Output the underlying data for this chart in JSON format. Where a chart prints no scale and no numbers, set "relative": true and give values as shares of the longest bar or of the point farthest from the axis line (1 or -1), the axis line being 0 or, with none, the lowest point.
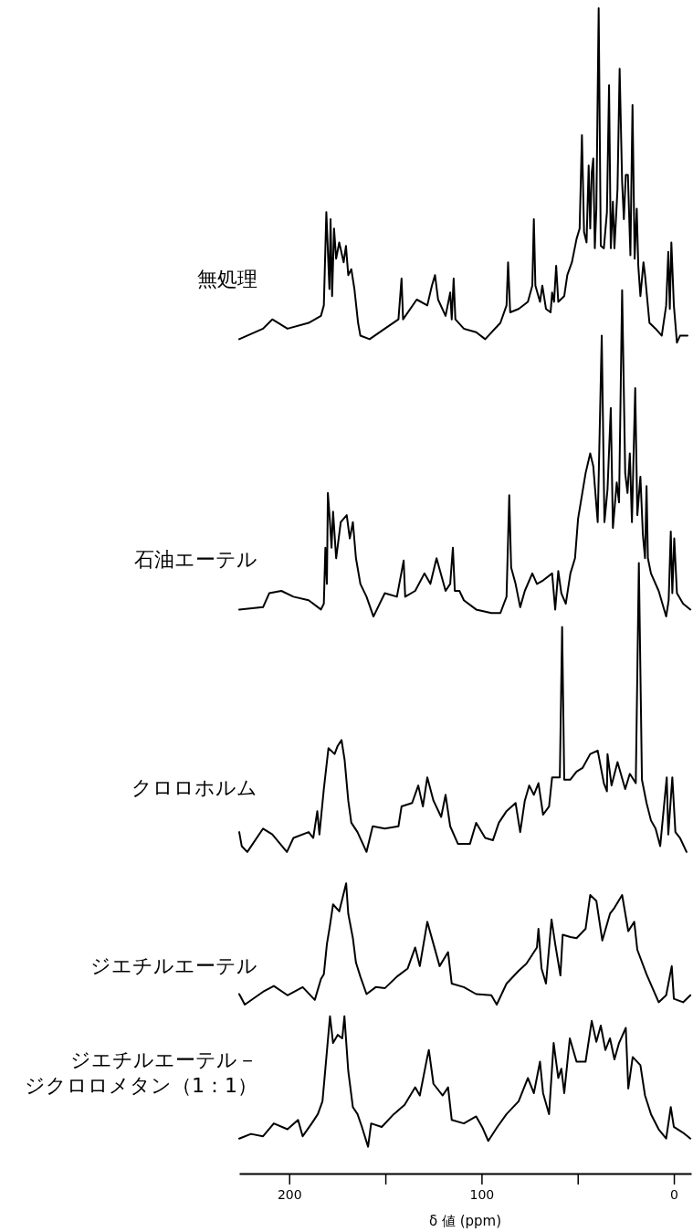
{
  "chart_data": {
    "type": "line",
    "relative": true,
    "xlim": [
      226,
      -9
    ],
    "xticks": [
      200,
      {
        "value": 150,
        "label": null
      },
      100,
      {
        "value": 50,
        "label": null
      },
      0
    ],
    "xlabel": "δ 値 (ppm)",
    "series": [
      {
        "name": "無処理",
        "color": "#000000",
        "x": [
          226.0,
          213.6,
          208.8,
          200.9,
          189.9,
          183.5,
          182.0,
          180.7,
          179.1,
          178.5,
          177.7,
          176.7,
          175.6,
          174.0,
          171.7,
          170.5,
          169.3,
          167.7,
          166.1,
          164.2,
          163.0,
          158.2,
          150.3,
          143.2,
          141.6,
          140.8,
          133.7,
          128.2,
          125.8,
          124.2,
          122.6,
          118.7,
          116.3,
          115.5,
          114.5,
          113.6,
          109.2,
          102.8,
          98.1,
          90.2,
          87.0,
          86.2,
          85.1,
          80.7,
          75.9,
          73.6,
          72.8,
          72.0,
          69.6,
          68.4,
          66.5,
          64.1,
          63.3,
          62.3,
          61.2,
          60.1,
          57.0,
          55.4,
          53.0,
          50.6,
          49.0,
          47.8,
          46.7,
          45.4,
          44.3,
          43.5,
          42.7,
          41.9,
          41.1,
          40.3,
          39.1,
          38.0,
          36.4,
          34.8,
          33.7,
          32.8,
          31.7,
          30.9,
          29.3,
          28.2,
          26.9,
          26.0,
          25.0,
          23.9,
          22.6,
          21.5,
          20.4,
          19.3,
          18.5,
          17.4,
          15.8,
          15.0,
          12.7,
          9.5,
          6.3,
          4.0,
          2.9,
          2.1,
          1.3,
          0.0,
          -1.6,
          -3.2,
          -7.1
        ],
        "values": [
          0.716,
          0.725,
          0.733,
          0.725,
          0.73,
          0.736,
          0.745,
          0.825,
          0.759,
          0.819,
          0.753,
          0.811,
          0.785,
          0.799,
          0.782,
          0.796,
          0.771,
          0.776,
          0.759,
          0.73,
          0.719,
          0.716,
          0.725,
          0.733,
          0.768,
          0.733,
          0.75,
          0.745,
          0.762,
          0.771,
          0.75,
          0.736,
          0.756,
          0.733,
          0.768,
          0.733,
          0.725,
          0.722,
          0.716,
          0.73,
          0.745,
          0.782,
          0.739,
          0.742,
          0.748,
          0.762,
          0.819,
          0.762,
          0.748,
          0.762,
          0.742,
          0.739,
          0.756,
          0.748,
          0.779,
          0.748,
          0.753,
          0.771,
          0.782,
          0.802,
          0.811,
          0.891,
          0.808,
          0.799,
          0.865,
          0.811,
          0.859,
          0.871,
          0.794,
          0.828,
          1,
          0.796,
          0.794,
          0.825,
          0.934,
          0.794,
          0.834,
          0.794,
          0.845,
          0.948,
          0.851,
          0.819,
          0.857,
          0.857,
          0.788,
          0.917,
          0.785,
          0.828,
          0.779,
          0.753,
          0.782,
          0.771,
          0.73,
          0.725,
          0.719,
          0.745,
          0.791,
          0.742,
          0.799,
          0.745,
          0.713,
          0.719,
          0.719
        ]
      },
      {
        "name": "石油エーテル",
        "color": "#000000",
        "x": [
          226.0,
          213.6,
          210.4,
          204.1,
          197.8,
          189.9,
          183.5,
          182.0,
          181.2,
          180.4,
          179.9,
          178.8,
          178.0,
          177.2,
          175.6,
          173.2,
          170.1,
          168.5,
          166.9,
          165.3,
          163.0,
          159.8,
          156.2,
          150.3,
          144.0,
          140.5,
          139.7,
          134.5,
          129.7,
          126.6,
          123.4,
          120.2,
          118.7,
          116.3,
          114.9,
          113.9,
          111.5,
          109.2,
          102.8,
          94.9,
          90.2,
          87.0,
          85.6,
          84.6,
          82.3,
          79.9,
          77.5,
          73.6,
          71.2,
          68.0,
          63.3,
          61.7,
          60.1,
          58.5,
          56.2,
          53.8,
          51.4,
          49.8,
          45.9,
          43.5,
          41.9,
          39.6,
          37.5,
          36.1,
          34.5,
          32.8,
          31.7,
          29.7,
          28.5,
          26.9,
          25.3,
          24.1,
          22.9,
          21.8,
          20.1,
          19.0,
          17.4,
          16.1,
          15.0,
          14.2,
          13.5,
          11.9,
          7.9,
          4.0,
          2.7,
          1.6,
          0.8,
          -0.2,
          -1.6,
          -4.8,
          -8.6
        ],
        "values": [
          0.484,
          0.486,
          0.498,
          0.5,
          0.495,
          0.492,
          0.484,
          0.489,
          0.537,
          0.506,
          0.584,
          0.559,
          0.537,
          0.568,
          0.528,
          0.559,
          0.565,
          0.545,
          0.559,
          0.528,
          0.506,
          0.495,
          0.478,
          0.498,
          0.495,
          0.526,
          0.495,
          0.5,
          0.515,
          0.506,
          0.528,
          0.509,
          0.5,
          0.506,
          0.537,
          0.5,
          0.5,
          0.492,
          0.484,
          0.481,
          0.481,
          0.495,
          0.582,
          0.52,
          0.506,
          0.486,
          0.5,
          0.515,
          0.506,
          0.509,
          0.515,
          0.484,
          0.517,
          0.498,
          0.489,
          0.515,
          0.528,
          0.562,
          0.601,
          0.618,
          0.607,
          0.559,
          0.719,
          0.559,
          0.587,
          0.657,
          0.554,
          0.593,
          0.576,
          0.758,
          0.601,
          0.584,
          0.618,
          0.559,
          0.674,
          0.565,
          0.598,
          0.548,
          0.528,
          0.59,
          0.528,
          0.515,
          0.5,
          0.478,
          0.492,
          0.551,
          0.498,
          0.545,
          0.498,
          0.489,
          0.484
        ]
      },
      {
        "name": "クロロホルム",
        "color": "#000000",
        "x": [
          226.0,
          224.7,
          221.8,
          213.6,
          208.8,
          201.2,
          197.8,
          189.9,
          187.5,
          185.4,
          184.3,
          182.0,
          179.6,
          176.4,
          174.8,
          172.8,
          171.2,
          169.3,
          167.7,
          164.5,
          159.8,
          156.6,
          150.3,
          143.2,
          141.6,
          136.1,
          132.9,
          130.5,
          128.2,
          125.0,
          121.0,
          118.7,
          116.3,
          112.3,
          106.0,
          102.8,
          98.1,
          94.1,
          91.0,
          87.0,
          82.3,
          79.9,
          77.5,
          75.2,
          72.8,
          70.4,
          68.0,
          64.9,
          63.3,
          59.3,
          58.1,
          57.0,
          53.8,
          50.6,
          47.5,
          43.5,
          39.6,
          36.4,
          34.8,
          34.5,
          32.4,
          29.3,
          25.3,
          22.9,
          19.8,
          18.2,
          16.6,
          14.2,
          11.9,
          9.5,
          7.1,
          3.7,
          2.9,
          0.8,
          -0.8,
          -3.2,
          -6.6
        ],
        "values": [
          0.293,
          0.281,
          0.276,
          0.296,
          0.291,
          0.276,
          0.288,
          0.293,
          0.288,
          0.311,
          0.291,
          0.33,
          0.365,
          0.36,
          0.367,
          0.372,
          0.355,
          0.32,
          0.301,
          0.293,
          0.276,
          0.298,
          0.296,
          0.298,
          0.315,
          0.318,
          0.333,
          0.315,
          0.34,
          0.32,
          0.306,
          0.325,
          0.298,
          0.283,
          0.283,
          0.301,
          0.288,
          0.286,
          0.301,
          0.311,
          0.318,
          0.293,
          0.32,
          0.333,
          0.325,
          0.335,
          0.308,
          0.315,
          0.34,
          0.34,
          0.469,
          0.338,
          0.338,
          0.345,
          0.348,
          0.36,
          0.363,
          0.335,
          0.328,
          0.36,
          0.333,
          0.353,
          0.33,
          0.343,
          0.335,
          0.524,
          0.338,
          0.318,
          0.303,
          0.296,
          0.281,
          0.34,
          0.291,
          0.34,
          0.293,
          0.288,
          0.276
        ]
      },
      {
        "name": "ジエチルエーテル",
        "color": "#000000",
        "x": [
          226.0,
          223.1,
          213.6,
          208.0,
          200.9,
          193.0,
          186.7,
          183.5,
          182.0,
          180.4,
          178.8,
          177.2,
          174.0,
          170.4,
          169.3,
          166.9,
          165.3,
          163.0,
          159.8,
          155.0,
          150.3,
          144.0,
          138.4,
          134.5,
          132.1,
          128.2,
          125.0,
          121.8,
          117.4,
          115.5,
          109.2,
          102.8,
          94.9,
          92.1,
          87.0,
          80.7,
          76.7,
          71.2,
          70.4,
          68.8,
          66.5,
          63.6,
          61.7,
          59.0,
          57.8,
          53.8,
          50.6,
          45.9,
          43.5,
          40.3,
          37.2,
          33.2,
          30.9,
          26.9,
          23.7,
          20.6,
          19.0,
          14.2,
          7.9,
          4.0,
          1.1,
          0.0,
          -4.8,
          -8.6
        ],
        "values": [
          0.154,
          0.145,
          0.156,
          0.161,
          0.153,
          0.16,
          0.149,
          0.167,
          0.171,
          0.197,
          0.213,
          0.231,
          0.225,
          0.249,
          0.223,
          0.202,
          0.181,
          0.169,
          0.154,
          0.16,
          0.159,
          0.169,
          0.176,
          0.194,
          0.178,
          0.216,
          0.197,
          0.178,
          0.19,
          0.163,
          0.16,
          0.154,
          0.153,
          0.145,
          0.163,
          0.174,
          0.18,
          0.194,
          0.21,
          0.176,
          0.163,
          0.218,
          0.197,
          0.17,
          0.205,
          0.203,
          0.202,
          0.21,
          0.239,
          0.234,
          0.2,
          0.223,
          0.228,
          0.239,
          0.208,
          0.216,
          0.192,
          0.171,
          0.147,
          0.153,
          0.178,
          0.15,
          0.147,
          0.153
        ]
      },
      {
        "name": "ジエチルエーテル－ジクロロメタン（1：1）",
        "color": "#000000",
        "x": [
          226.0,
          219.9,
          213.6,
          208.0,
          200.9,
          195.4,
          193.0,
          188.3,
          185.1,
          182.7,
          181.2,
          178.8,
          177.2,
          174.8,
          172.4,
          171.3,
          169.3,
          166.9,
          164.5,
          162.2,
          159.0,
          157.4,
          151.9,
          145.6,
          140.0,
          134.5,
          132.1,
          128.2,
          127.4,
          125.0,
          120.2,
          117.4,
          115.5,
          109.2,
          102.8,
          99.7,
          96.5,
          91.8,
          87.0,
          80.7,
          75.9,
          72.8,
          69.6,
          68.0,
          64.9,
          62.5,
          60.1,
          58.5,
          57.0,
          54.1,
          50.6,
          45.9,
          42.7,
          40.3,
          38.0,
          35.6,
          33.2,
          30.9,
          28.5,
          25.0,
          23.7,
          21.4,
          17.4,
          15.0,
          11.9,
          7.9,
          4.0,
          1.6,
          0.0,
          -4.8,
          -8.6
        ],
        "values": [
          0.03,
          0.034,
          0.032,
          0.043,
          0.038,
          0.046,
          0.032,
          0.043,
          0.051,
          0.062,
          0.09,
          0.135,
          0.112,
          0.119,
          0.116,
          0.135,
          0.088,
          0.057,
          0.051,
          0.04,
          0.023,
          0.043,
          0.04,
          0.051,
          0.059,
          0.074,
          0.067,
          0.1,
          0.106,
          0.077,
          0.067,
          0.074,
          0.046,
          0.043,
          0.049,
          0.04,
          0.028,
          0.04,
          0.051,
          0.062,
          0.082,
          0.069,
          0.096,
          0.069,
          0.051,
          0.112,
          0.082,
          0.09,
          0.069,
          0.116,
          0.096,
          0.096,
          0.131,
          0.113,
          0.127,
          0.106,
          0.116,
          0.098,
          0.112,
          0.125,
          0.073,
          0.1,
          0.093,
          0.067,
          0.051,
          0.038,
          0.03,
          0.057,
          0.04,
          0.035,
          0.03
        ]
      }
    ]
  }
}
